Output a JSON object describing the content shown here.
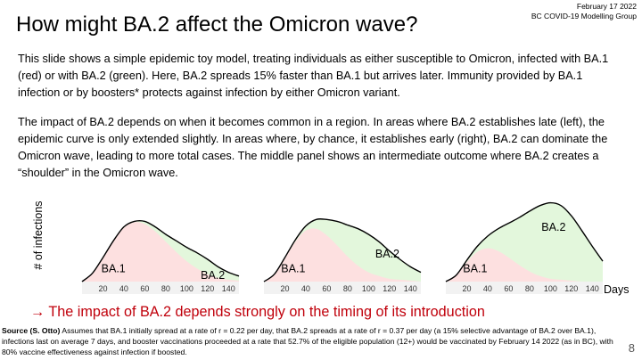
{
  "header": {
    "date": "February 17 2022",
    "group": "BC COVID-19 Modelling Group"
  },
  "title": "How might BA.2 affect the Omicron wave?",
  "paragraph1": "This slide shows a simple epidemic toy model, treating individuals as either susceptible to Omicron, infected with BA.1 (red) or with BA.2 (green). Here, BA.2 spreads 15% faster than BA.1 but arrives later. Immunity provided by BA.1 infection or by boosters* protects against infection by either Omicron variant.",
  "paragraph2": "The impact of BA.2 depends on when it becomes common in a region. In areas where BA.2 establishes late (left), the epidemic curve is only extended slightly. In areas where, by chance, it establishes early (right), BA.2 can dominate the Omicron wave, leading to more total cases. The middle panel shows an intermediate outcome where BA.2 creates a “shoulder” in the Omicron wave.",
  "callout": "→ The impact of BA.2 depends strongly on the timing of its introduction",
  "source": {
    "label": "Source (S. Otto)",
    "text": " Assumes that BA.1 initially spread at a rate of r = 0.22 per day, that BA.2 spreads at a rate of r = 0.37 per day (a 15% selective advantage of BA.2 over BA.1), infections last on average 7 days, and booster vaccinations proceeded at a rate that 52.7% of the eligible population (12+) would be vaccinated by February 14 2022 (as in BC), with 80% vaccine effectiveness against infection if boosted."
  },
  "page_number": "8",
  "colors": {
    "ba1_fill": "#fde0e0",
    "ba2_fill": "#e3f7dc",
    "total_line": "#000000",
    "callout": "#c0000b",
    "panel_bg": "#f2f2f2"
  },
  "chart_data": [
    {
      "type": "area",
      "ylabel": "# of infections",
      "xlabel": "Days",
      "x_ticks": [
        20,
        40,
        60,
        80,
        100,
        120,
        140
      ],
      "xlim": [
        0,
        150
      ],
      "ylim": [
        0,
        1
      ],
      "x": [
        0,
        10,
        20,
        30,
        40,
        50,
        60,
        70,
        80,
        90,
        100,
        110,
        120,
        130,
        140,
        150
      ],
      "series": [
        {
          "name": "BA.1",
          "values": [
            0.0,
            0.09,
            0.26,
            0.44,
            0.58,
            0.64,
            0.62,
            0.54,
            0.43,
            0.32,
            0.22,
            0.14,
            0.08,
            0.04,
            0.02,
            0.01
          ]
        },
        {
          "name": "BA.2",
          "values": [
            0.0,
            0.0,
            0.0,
            0.0,
            0.01,
            0.01,
            0.03,
            0.05,
            0.08,
            0.12,
            0.15,
            0.17,
            0.16,
            0.12,
            0.08,
            0.05
          ]
        }
      ]
    },
    {
      "type": "area",
      "xlabel": "Days",
      "x_ticks": [
        20,
        40,
        60,
        80,
        100,
        120,
        140
      ],
      "xlim": [
        0,
        150
      ],
      "ylim": [
        0,
        1
      ],
      "x": [
        0,
        10,
        20,
        30,
        40,
        50,
        60,
        70,
        80,
        90,
        100,
        110,
        120,
        130,
        140,
        150
      ],
      "series": [
        {
          "name": "BA.1",
          "values": [
            0.0,
            0.08,
            0.25,
            0.43,
            0.55,
            0.57,
            0.5,
            0.39,
            0.27,
            0.17,
            0.1,
            0.06,
            0.03,
            0.02,
            0.01,
            0.0
          ]
        },
        {
          "name": "BA.2",
          "values": [
            0.0,
            0.0,
            0.01,
            0.02,
            0.05,
            0.1,
            0.17,
            0.26,
            0.34,
            0.4,
            0.41,
            0.37,
            0.3,
            0.22,
            0.15,
            0.1
          ]
        }
      ]
    },
    {
      "type": "area",
      "xlabel": "Days",
      "x_ticks": [
        20,
        40,
        60,
        80,
        100,
        120,
        140
      ],
      "xlim": [
        0,
        150
      ],
      "ylim": [
        0,
        1
      ],
      "x": [
        0,
        10,
        20,
        30,
        40,
        50,
        60,
        70,
        80,
        90,
        100,
        110,
        120,
        130,
        140,
        150
      ],
      "series": [
        {
          "name": "BA.1",
          "values": [
            0.0,
            0.07,
            0.21,
            0.32,
            0.36,
            0.33,
            0.26,
            0.18,
            0.11,
            0.06,
            0.03,
            0.02,
            0.01,
            0.0,
            0.0,
            0.0
          ]
        },
        {
          "name": "BA.2",
          "values": [
            0.0,
            0.0,
            0.02,
            0.06,
            0.13,
            0.24,
            0.37,
            0.51,
            0.65,
            0.76,
            0.82,
            0.8,
            0.7,
            0.55,
            0.38,
            0.22
          ]
        }
      ]
    }
  ]
}
